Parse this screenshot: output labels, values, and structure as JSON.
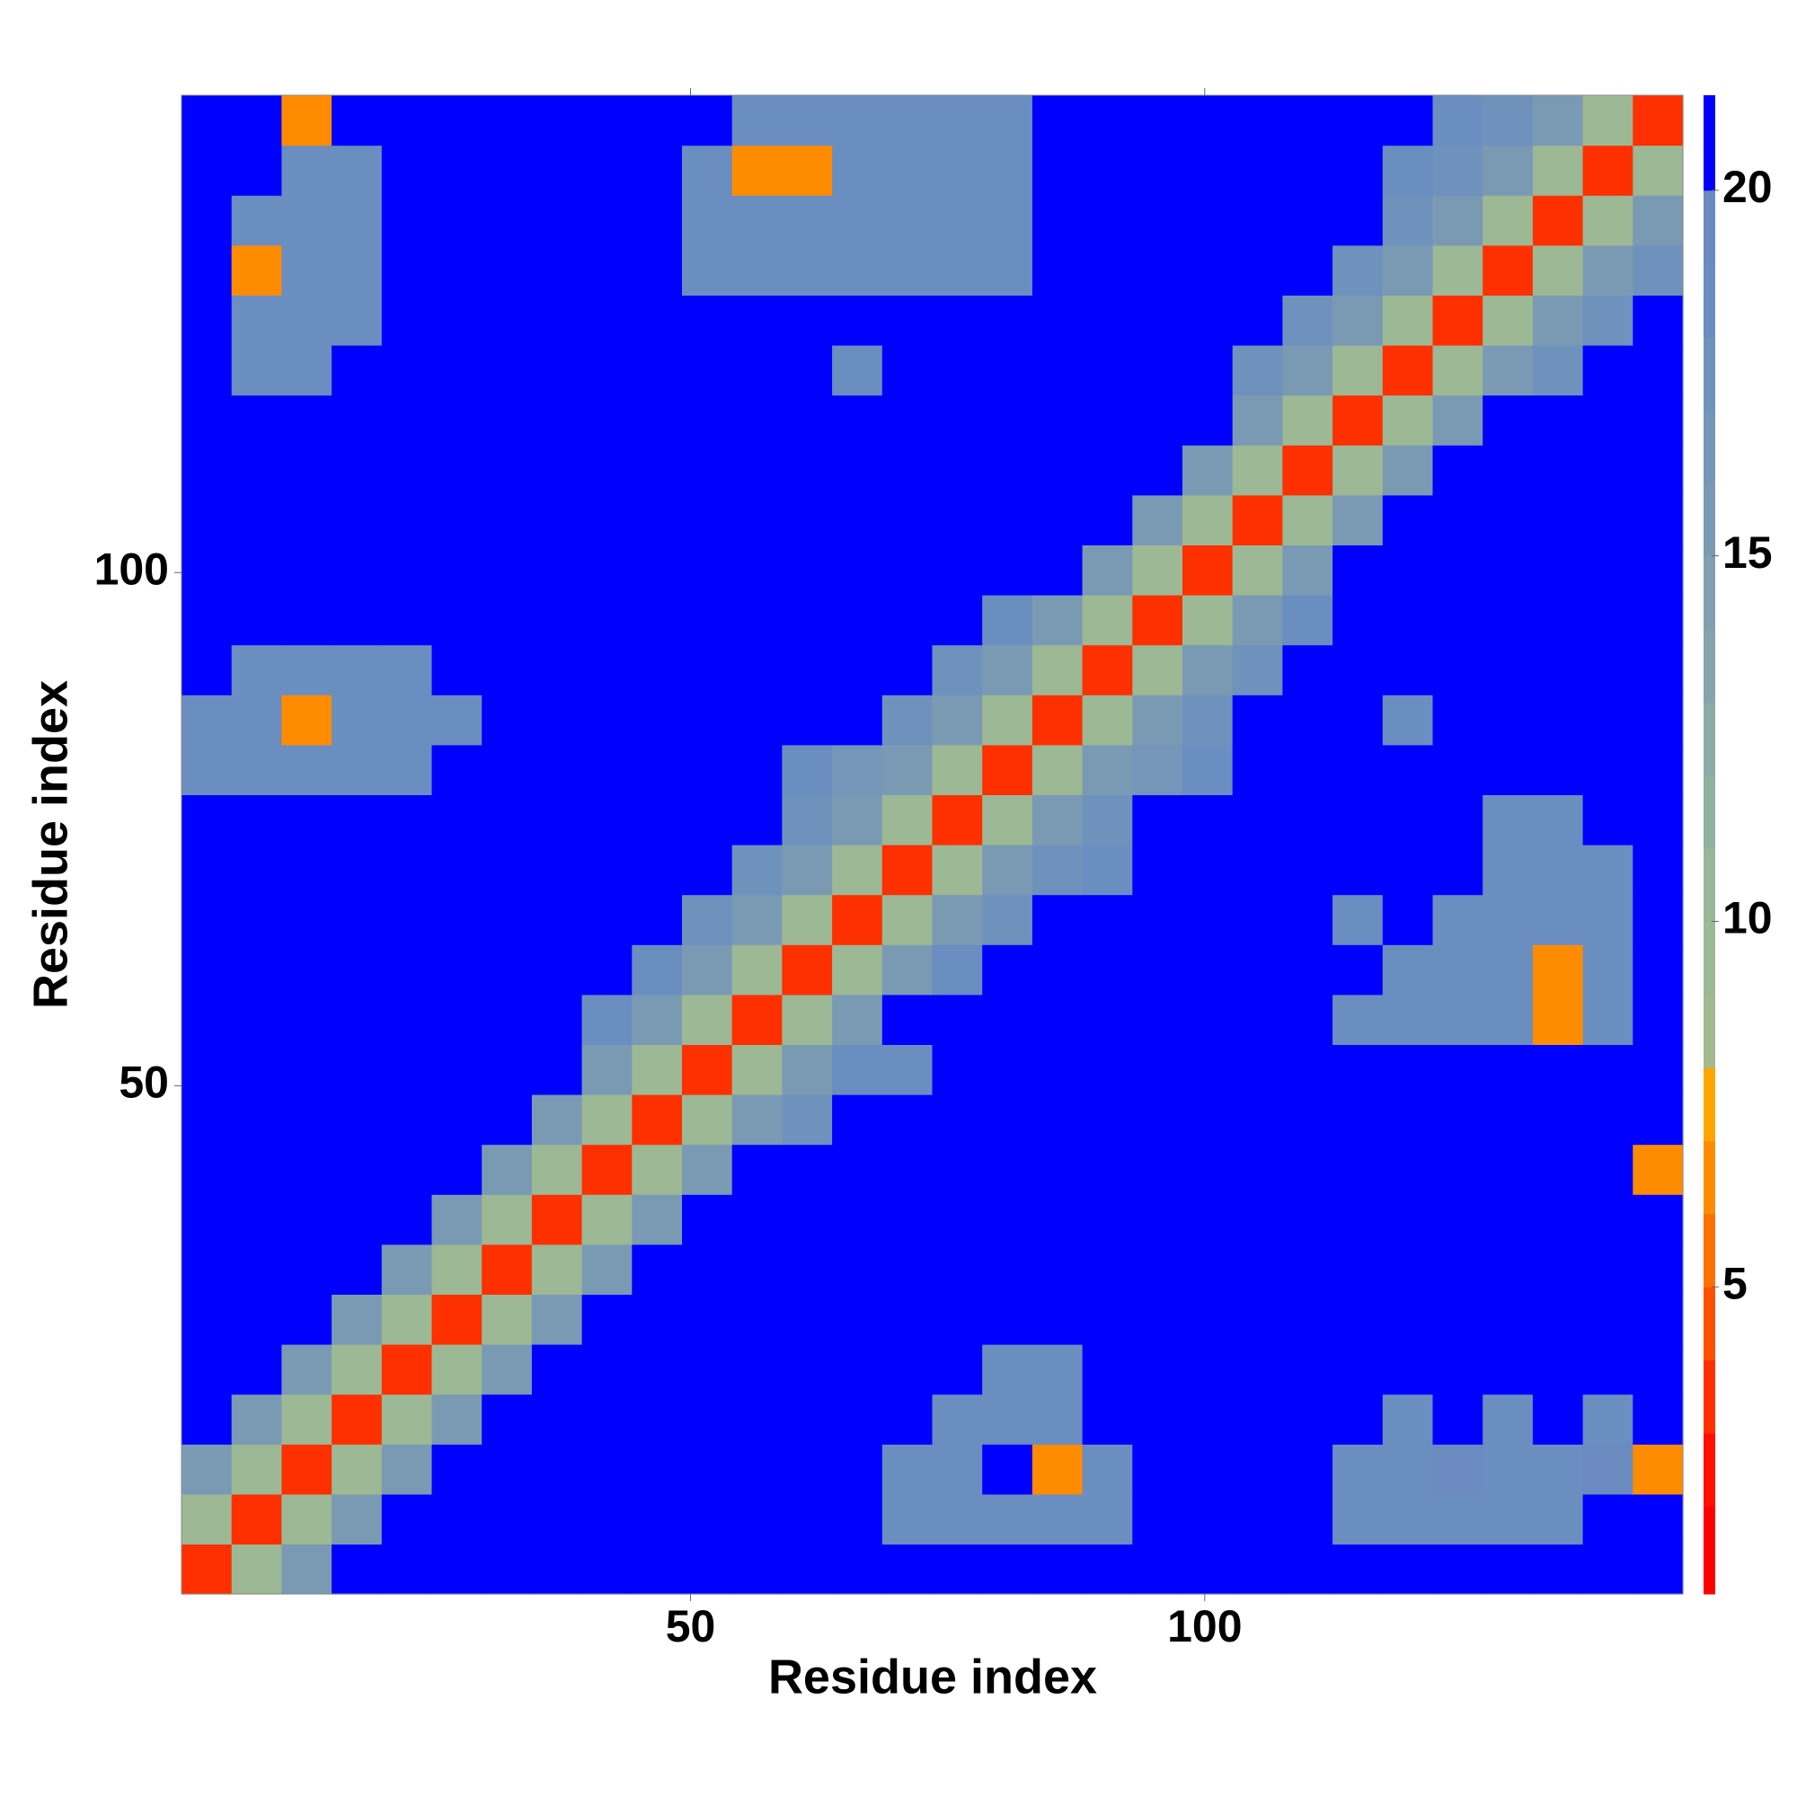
{
  "chart_data": {
    "type": "heatmap",
    "x_label": "Residue index",
    "y_label": "Residue index",
    "xlim": [
      0.5,
      146.5
    ],
    "ylim": [
      0.5,
      146.5
    ],
    "xticks": [
      50,
      100
    ],
    "yticks": [
      50,
      100
    ],
    "zlim": [
      0.8,
      21.3
    ],
    "colorbar_ticks": [
      5,
      10,
      15,
      20
    ],
    "levels": [
      0.8,
      2,
      3,
      4,
      5,
      6,
      7,
      8,
      9,
      10,
      11,
      12,
      13,
      14,
      15,
      16,
      17,
      18,
      19,
      20,
      21.3
    ],
    "colors": [
      "#ff0000",
      "#ff1000",
      "#ff3000",
      "#ff5000",
      "#ff7000",
      "#ff8c00",
      "#ffa500",
      "#a2ba8e",
      "#9cb894",
      "#98b698",
      "#92b0a0",
      "#8caaa6",
      "#86a4ac",
      "#80a0b0",
      "#7a9ab4",
      "#7496b8",
      "#6e92bc",
      "#6a8ec0",
      "#6a8ac0",
      "#0000ff"
    ],
    "z": [
      [
        3,
        9,
        15,
        21,
        21,
        21,
        21,
        21,
        21,
        21,
        21,
        21,
        21,
        21,
        21,
        21,
        21,
        21,
        21,
        21,
        21,
        21,
        21,
        21,
        21,
        21,
        21,
        21,
        21,
        21
      ],
      [
        9,
        3,
        9,
        15,
        21,
        21,
        21,
        21,
        21,
        21,
        21,
        21,
        21,
        21,
        18,
        18,
        18,
        18,
        18,
        21,
        21,
        21,
        21,
        18,
        18,
        18,
        18,
        18,
        21,
        21
      ],
      [
        15,
        9,
        3,
        9,
        15,
        21,
        21,
        21,
        21,
        21,
        21,
        21,
        21,
        21,
        18,
        18,
        21,
        6,
        18,
        21,
        21,
        21,
        21,
        18,
        18,
        19,
        18,
        18,
        19,
        6
      ],
      [
        21,
        15,
        9,
        3,
        9,
        15,
        21,
        21,
        21,
        21,
        21,
        21,
        21,
        21,
        21,
        18,
        18,
        18,
        21,
        21,
        21,
        21,
        21,
        21,
        18,
        21,
        18,
        21,
        18,
        21
      ],
      [
        21,
        21,
        15,
        9,
        3,
        9,
        15,
        21,
        21,
        21,
        21,
        21,
        21,
        21,
        21,
        21,
        18,
        18,
        21,
        21,
        21,
        21,
        21,
        21,
        21,
        21,
        21,
        21,
        21,
        21
      ],
      [
        21,
        21,
        21,
        15,
        9,
        3,
        9,
        15,
        21,
        21,
        21,
        21,
        21,
        21,
        21,
        21,
        21,
        21,
        21,
        21,
        21,
        21,
        21,
        21,
        21,
        21,
        21,
        21,
        21,
        21
      ],
      [
        21,
        21,
        21,
        21,
        15,
        9,
        3,
        9,
        15,
        21,
        21,
        21,
        21,
        21,
        21,
        21,
        21,
        21,
        21,
        21,
        21,
        21,
        21,
        21,
        21,
        21,
        21,
        21,
        21,
        21
      ],
      [
        21,
        21,
        21,
        21,
        21,
        15,
        9,
        3,
        9,
        15,
        21,
        21,
        21,
        21,
        21,
        21,
        21,
        21,
        21,
        21,
        21,
        21,
        21,
        21,
        21,
        21,
        21,
        21,
        21,
        21
      ],
      [
        21,
        21,
        21,
        21,
        21,
        21,
        15,
        9,
        3,
        9,
        15,
        21,
        21,
        21,
        21,
        21,
        21,
        21,
        21,
        21,
        21,
        21,
        21,
        21,
        21,
        21,
        21,
        21,
        21,
        6
      ],
      [
        21,
        21,
        21,
        21,
        21,
        21,
        21,
        15,
        9,
        3,
        9,
        15,
        17,
        21,
        21,
        21,
        21,
        21,
        21,
        21,
        21,
        21,
        21,
        21,
        21,
        21,
        21,
        21,
        21,
        21
      ],
      [
        21,
        21,
        21,
        21,
        21,
        21,
        21,
        21,
        15,
        9,
        3,
        9,
        15,
        18,
        18,
        21,
        21,
        21,
        21,
        21,
        21,
        21,
        21,
        21,
        21,
        21,
        21,
        21,
        21,
        21
      ],
      [
        21,
        21,
        21,
        21,
        21,
        21,
        21,
        21,
        18,
        15,
        9,
        3,
        9,
        15,
        21,
        21,
        21,
        21,
        21,
        21,
        21,
        21,
        21,
        18,
        18,
        18,
        18,
        6,
        18,
        21
      ],
      [
        21,
        21,
        21,
        21,
        21,
        21,
        21,
        21,
        21,
        18,
        15,
        9,
        3,
        9,
        15,
        18,
        21,
        21,
        21,
        21,
        21,
        21,
        21,
        21,
        18,
        18,
        18,
        6,
        18,
        21
      ],
      [
        21,
        21,
        21,
        21,
        21,
        21,
        21,
        21,
        21,
        21,
        17,
        15,
        9,
        3,
        9,
        15,
        17,
        21,
        21,
        21,
        21,
        21,
        21,
        18,
        21,
        18,
        18,
        18,
        18,
        21
      ],
      [
        21,
        21,
        21,
        21,
        21,
        21,
        21,
        21,
        21,
        21,
        21,
        17,
        15,
        9,
        3,
        9,
        15,
        17,
        18,
        21,
        21,
        21,
        21,
        21,
        21,
        21,
        18,
        18,
        18,
        21
      ],
      [
        21,
        21,
        21,
        21,
        21,
        21,
        21,
        21,
        21,
        21,
        21,
        21,
        17,
        15,
        9,
        3,
        9,
        15,
        17,
        21,
        21,
        21,
        21,
        21,
        21,
        21,
        18,
        18,
        21,
        21
      ],
      [
        18,
        18,
        18,
        18,
        18,
        21,
        21,
        21,
        21,
        21,
        21,
        21,
        18,
        16,
        15,
        9,
        3,
        9,
        15,
        16,
        18,
        21,
        21,
        21,
        21,
        21,
        21,
        21,
        21,
        21
      ],
      [
        18,
        18,
        6,
        18,
        18,
        18,
        21,
        21,
        21,
        21,
        21,
        21,
        21,
        21,
        17,
        15,
        9,
        3,
        9,
        15,
        17,
        21,
        21,
        21,
        18,
        21,
        21,
        21,
        21,
        21
      ],
      [
        21,
        18,
        18,
        18,
        18,
        21,
        21,
        21,
        21,
        21,
        21,
        21,
        21,
        21,
        21,
        17,
        15,
        9,
        3,
        9,
        15,
        17,
        21,
        21,
        21,
        21,
        21,
        21,
        21,
        21
      ],
      [
        21,
        21,
        21,
        21,
        21,
        21,
        21,
        21,
        21,
        21,
        21,
        21,
        21,
        21,
        21,
        21,
        18,
        15,
        9,
        3,
        9,
        15,
        18,
        21,
        21,
        21,
        21,
        21,
        21,
        21
      ],
      [
        21,
        21,
        21,
        21,
        21,
        21,
        21,
        21,
        21,
        21,
        21,
        21,
        21,
        21,
        21,
        21,
        21,
        21,
        15,
        9,
        3,
        9,
        15,
        21,
        21,
        21,
        21,
        21,
        21,
        21
      ],
      [
        21,
        21,
        21,
        21,
        21,
        21,
        21,
        21,
        21,
        21,
        21,
        21,
        21,
        21,
        21,
        21,
        21,
        21,
        21,
        15,
        9,
        3,
        9,
        15,
        21,
        21,
        21,
        21,
        21,
        21
      ],
      [
        21,
        21,
        21,
        21,
        21,
        21,
        21,
        21,
        21,
        21,
        21,
        21,
        21,
        21,
        21,
        21,
        21,
        21,
        21,
        21,
        15,
        9,
        3,
        9,
        15,
        21,
        21,
        21,
        21,
        21
      ],
      [
        21,
        21,
        21,
        21,
        21,
        21,
        21,
        21,
        21,
        21,
        21,
        21,
        21,
        21,
        21,
        21,
        21,
        21,
        21,
        21,
        21,
        15,
        9,
        3,
        9,
        15,
        21,
        21,
        21,
        21
      ],
      [
        21,
        18,
        18,
        21,
        21,
        21,
        21,
        21,
        21,
        21,
        21,
        21,
        21,
        18,
        21,
        21,
        21,
        21,
        21,
        21,
        21,
        17,
        15,
        9,
        3,
        9,
        15,
        17,
        21,
        21
      ],
      [
        21,
        18,
        18,
        18,
        21,
        21,
        21,
        21,
        21,
        21,
        21,
        21,
        21,
        21,
        21,
        21,
        21,
        21,
        21,
        21,
        21,
        21,
        17,
        15,
        9,
        3,
        9,
        15,
        17,
        21
      ],
      [
        21,
        6,
        18,
        18,
        21,
        21,
        21,
        21,
        21,
        21,
        18,
        18,
        18,
        18,
        18,
        18,
        18,
        21,
        21,
        21,
        21,
        21,
        21,
        17,
        15,
        9,
        3,
        9,
        15,
        17
      ],
      [
        21,
        18,
        18,
        18,
        21,
        21,
        21,
        21,
        21,
        21,
        18,
        18,
        18,
        18,
        18,
        18,
        18,
        21,
        21,
        21,
        21,
        21,
        21,
        21,
        17,
        15,
        9,
        3,
        9,
        15
      ],
      [
        21,
        21,
        18,
        18,
        21,
        21,
        21,
        21,
        21,
        21,
        18,
        6,
        6,
        18,
        18,
        18,
        18,
        21,
        21,
        21,
        21,
        21,
        21,
        21,
        18,
        17,
        15,
        9,
        3,
        9
      ],
      [
        21,
        21,
        6,
        21,
        21,
        21,
        21,
        21,
        21,
        21,
        21,
        18,
        18,
        18,
        18,
        18,
        18,
        21,
        21,
        21,
        21,
        21,
        21,
        21,
        21,
        18,
        17,
        15,
        9,
        3
      ]
    ]
  }
}
